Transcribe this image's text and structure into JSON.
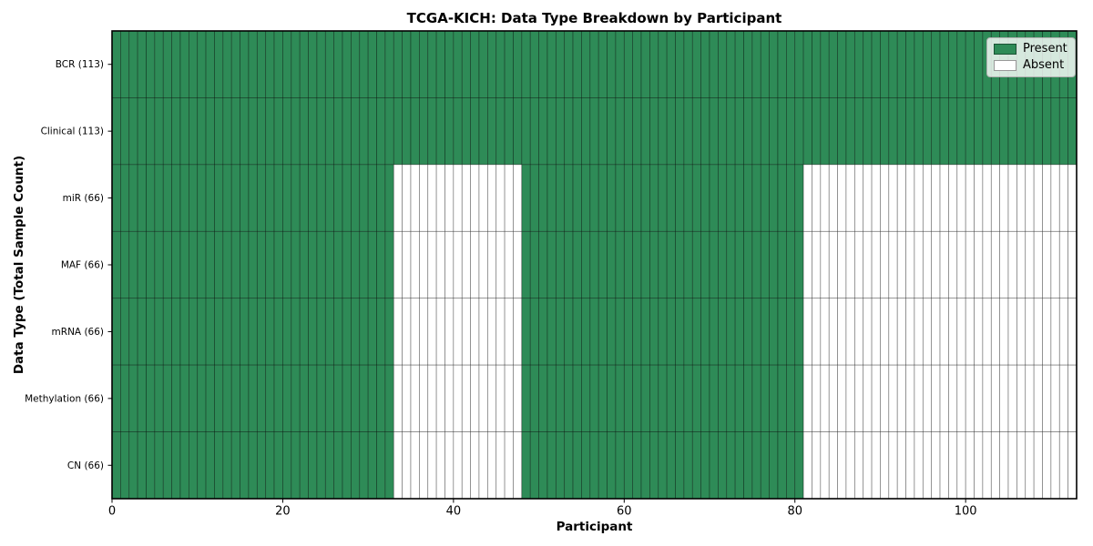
{
  "chart_data": {
    "type": "heatmap",
    "title": "TCGA-KICH: Data Type Breakdown by Participant",
    "xlabel": "Participant",
    "ylabel": "Data Type (Total Sample Count)",
    "x_ticks": [
      0,
      20,
      40,
      60,
      80,
      100
    ],
    "x_range": [
      0,
      113
    ],
    "n_participants": 113,
    "rows": [
      {
        "label": "BCR (113)",
        "present_ranges": [
          [
            0,
            113
          ]
        ]
      },
      {
        "label": "Clinical (113)",
        "present_ranges": [
          [
            0,
            113
          ]
        ]
      },
      {
        "label": "miR (66)",
        "present_ranges": [
          [
            0,
            33
          ],
          [
            48,
            81
          ]
        ]
      },
      {
        "label": "MAF (66)",
        "present_ranges": [
          [
            0,
            33
          ],
          [
            48,
            81
          ]
        ]
      },
      {
        "label": "mRNA (66)",
        "present_ranges": [
          [
            0,
            33
          ],
          [
            48,
            81
          ]
        ]
      },
      {
        "label": "Methylation (66)",
        "present_ranges": [
          [
            0,
            33
          ],
          [
            48,
            81
          ]
        ]
      },
      {
        "label": "CN (66)",
        "present_ranges": [
          [
            0,
            33
          ],
          [
            48,
            81
          ]
        ]
      }
    ],
    "legend": [
      {
        "label": "Present",
        "color": "#2e8b57"
      },
      {
        "label": "Absent",
        "color": "#ffffff"
      }
    ],
    "legend_position": "upper right",
    "grid": "cell-borders",
    "colors": {
      "present": "#2e8b57",
      "absent": "#ffffff",
      "cell_edge": "#000000",
      "frame": "#000000",
      "background": "#ffffff"
    }
  }
}
